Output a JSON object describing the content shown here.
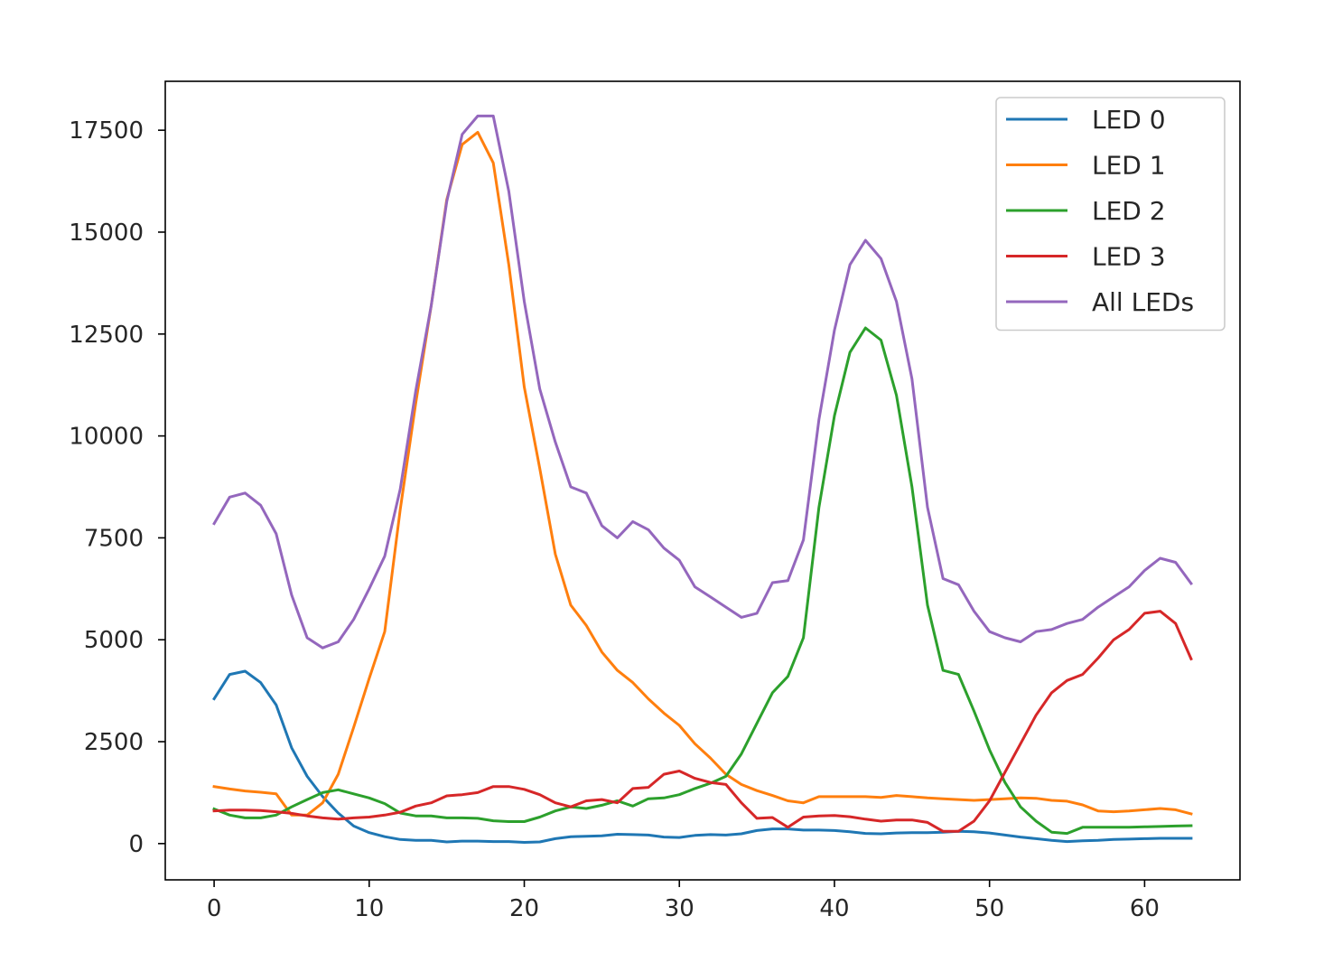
{
  "chart_data": {
    "type": "line",
    "title": "",
    "xlabel": "",
    "ylabel": "",
    "xlim": [
      -3.15,
      66.15
    ],
    "ylim": [
      -890,
      18700
    ],
    "xticks": [
      0,
      10,
      20,
      30,
      40,
      50,
      60
    ],
    "yticks": [
      0,
      2500,
      5000,
      7500,
      10000,
      12500,
      15000,
      17500
    ],
    "xtick_labels": [
      "0",
      "10",
      "20",
      "30",
      "40",
      "50",
      "60"
    ],
    "ytick_labels": [
      "0",
      "2500",
      "5000",
      "7500",
      "10000",
      "12500",
      "15000",
      "17500"
    ],
    "grid": false,
    "legend_position": "upper right",
    "x": [
      0,
      1,
      2,
      3,
      4,
      5,
      6,
      7,
      8,
      9,
      10,
      11,
      12,
      13,
      14,
      15,
      16,
      17,
      18,
      19,
      20,
      21,
      22,
      23,
      24,
      25,
      26,
      27,
      28,
      29,
      30,
      31,
      32,
      33,
      34,
      35,
      36,
      37,
      38,
      39,
      40,
      41,
      42,
      43,
      44,
      45,
      46,
      47,
      48,
      49,
      50,
      51,
      52,
      53,
      54,
      55,
      56,
      57,
      58,
      59,
      60,
      61,
      62,
      63
    ],
    "series": [
      {
        "name": "LED 0",
        "color": "#1f77b4",
        "values": [
          3550,
          4150,
          4230,
          3950,
          3400,
          2350,
          1650,
          1150,
          750,
          430,
          270,
          170,
          100,
          80,
          80,
          40,
          60,
          60,
          50,
          50,
          30,
          40,
          120,
          170,
          180,
          190,
          230,
          220,
          210,
          160,
          150,
          200,
          220,
          210,
          240,
          320,
          360,
          360,
          330,
          330,
          320,
          290,
          250,
          240,
          260,
          270,
          270,
          280,
          300,
          290,
          260,
          210,
          160,
          120,
          80,
          50,
          70,
          80,
          100,
          110,
          120,
          130,
          130,
          130
        ]
      },
      {
        "name": "LED 1",
        "color": "#ff7f0e",
        "values": [
          1400,
          1340,
          1290,
          1260,
          1220,
          700,
          700,
          1000,
          1700,
          2850,
          4050,
          5200,
          8200,
          10800,
          13200,
          15800,
          17150,
          17450,
          16700,
          14200,
          11200,
          9200,
          7100,
          5850,
          5350,
          4700,
          4250,
          3950,
          3550,
          3200,
          2900,
          2450,
          2100,
          1700,
          1450,
          1300,
          1180,
          1050,
          1000,
          1150,
          1150,
          1150,
          1150,
          1130,
          1180,
          1150,
          1120,
          1100,
          1080,
          1060,
          1080,
          1100,
          1120,
          1110,
          1060,
          1040,
          950,
          800,
          780,
          800,
          830,
          860,
          830,
          730
        ]
      },
      {
        "name": "LED 2",
        "color": "#2ca02c",
        "values": [
          850,
          700,
          630,
          630,
          700,
          900,
          1080,
          1250,
          1320,
          1220,
          1120,
          980,
          750,
          680,
          680,
          630,
          630,
          620,
          560,
          540,
          540,
          650,
          800,
          900,
          860,
          940,
          1050,
          920,
          1100,
          1120,
          1200,
          1350,
          1480,
          1650,
          2200,
          2950,
          3700,
          4100,
          5050,
          8250,
          10500,
          12050,
          12650,
          12350,
          11000,
          8750,
          5850,
          4250,
          4150,
          3250,
          2300,
          1500,
          900,
          550,
          280,
          250,
          400,
          400,
          400,
          400,
          410,
          420,
          430,
          440
        ]
      },
      {
        "name": "LED 3",
        "color": "#d62728",
        "values": [
          800,
          820,
          820,
          810,
          780,
          740,
          680,
          630,
          600,
          630,
          650,
          700,
          770,
          920,
          1000,
          1170,
          1200,
          1250,
          1400,
          1400,
          1330,
          1200,
          1000,
          900,
          1050,
          1080,
          1000,
          1350,
          1380,
          1700,
          1780,
          1600,
          1500,
          1450,
          1000,
          620,
          640,
          400,
          650,
          680,
          690,
          660,
          600,
          550,
          580,
          580,
          520,
          300,
          300,
          550,
          1050,
          1750,
          2450,
          3150,
          3700,
          4000,
          4150,
          4550,
          5000,
          5250,
          5650,
          5700,
          5400,
          4530
        ]
      },
      {
        "name": "All LEDs",
        "color": "#9467bd",
        "values": [
          7850,
          8500,
          8600,
          8300,
          7600,
          6100,
          5050,
          4800,
          4950,
          5500,
          6250,
          7050,
          8700,
          11100,
          13200,
          15750,
          17400,
          17850,
          17850,
          16000,
          13300,
          11150,
          9850,
          8750,
          8600,
          7800,
          7500,
          7900,
          7700,
          7250,
          6950,
          6300,
          6050,
          5800,
          5550,
          5650,
          6400,
          6450,
          7450,
          10400,
          12600,
          14200,
          14800,
          14350,
          13300,
          11400,
          8250,
          6500,
          6350,
          5700,
          5200,
          5050,
          4950,
          5200,
          5250,
          5400,
          5500,
          5800,
          6050,
          6300,
          6700,
          7000,
          6900,
          6380
        ]
      }
    ]
  }
}
